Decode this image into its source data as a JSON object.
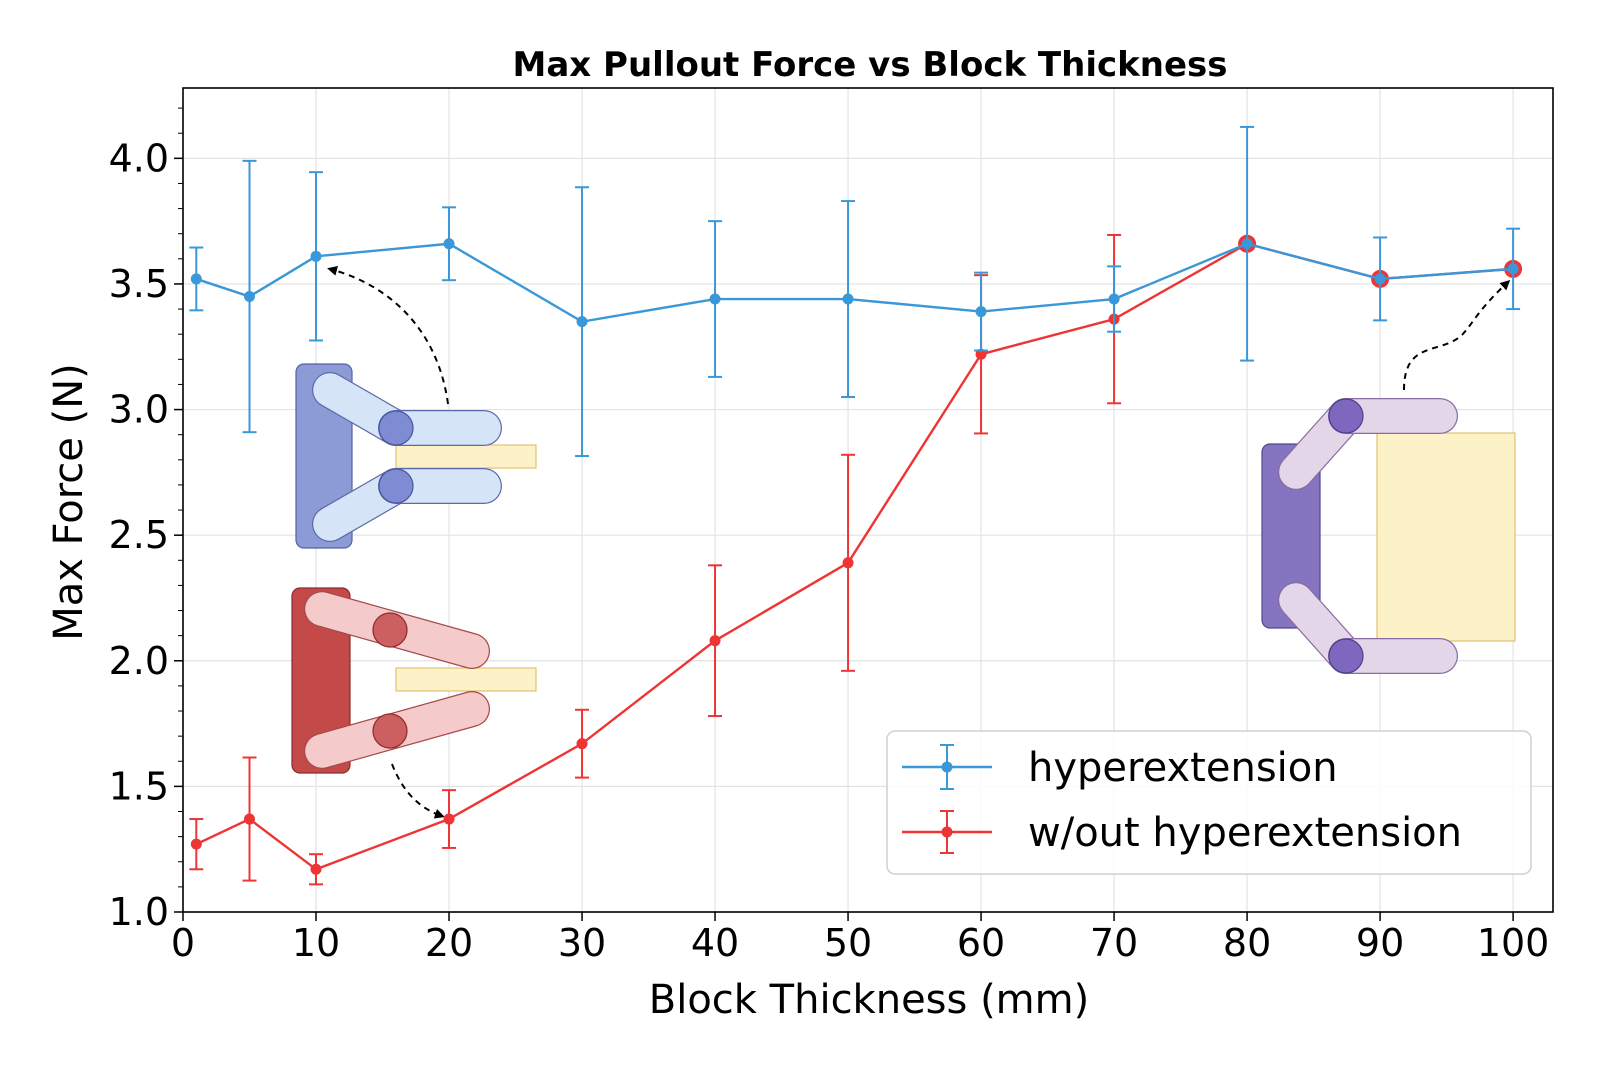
{
  "chart_data": {
    "type": "line",
    "title": "Max Pullout Force vs Block Thickness",
    "xlabel": "Block Thickness (mm)",
    "ylabel": "Max Force (N)",
    "xlim": [
      0,
      103
    ],
    "ylim": [
      1.0,
      4.28
    ],
    "xticks": [
      0,
      10,
      20,
      30,
      40,
      50,
      60,
      70,
      80,
      90,
      100
    ],
    "yticks": [
      1.0,
      1.5,
      2.0,
      2.5,
      3.0,
      3.5,
      4.0
    ],
    "xtick_labels": [
      "0",
      "10",
      "20",
      "30",
      "40",
      "50",
      "60",
      "70",
      "80",
      "90",
      "100"
    ],
    "ytick_labels": [
      "1.0",
      "1.5",
      "2.0",
      "2.5",
      "3.0",
      "3.5",
      "4.0"
    ],
    "grid": true,
    "legend_position": "bottom-right",
    "series": [
      {
        "name": "hyperextension",
        "color": "#3a97d8",
        "x": [
          1,
          5,
          10,
          20,
          30,
          40,
          50,
          60,
          70,
          80,
          90,
          100
        ],
        "y": [
          3.52,
          3.45,
          3.61,
          3.66,
          3.35,
          3.44,
          3.44,
          3.39,
          3.44,
          3.66,
          3.52,
          3.56
        ],
        "err": [
          0.125,
          0.54,
          0.335,
          0.145,
          0.535,
          0.31,
          0.39,
          0.155,
          0.13,
          0.465,
          0.165,
          0.16
        ]
      },
      {
        "name": "w/out hyperextension",
        "color": "#ee3535",
        "x": [
          1,
          5,
          10,
          20,
          30,
          40,
          50,
          60,
          70,
          80,
          90,
          100
        ],
        "y": [
          1.27,
          1.37,
          1.17,
          1.37,
          1.67,
          2.08,
          2.39,
          3.22,
          3.36,
          3.66,
          3.52,
          3.56
        ],
        "err": [
          0.1,
          0.245,
          0.06,
          0.115,
          0.135,
          0.3,
          0.43,
          0.315,
          0.335,
          0.0,
          0.0,
          0.0
        ]
      }
    ]
  },
  "insets": {
    "colors": {
      "blue_palm": "#8c9ad6",
      "blue_link": "#d6e4f7",
      "blue_joint": "#7f8bd3",
      "red_palm": "#c44a4a",
      "red_link": "#f5caca",
      "red_joint": "#cc6060",
      "purple_palm": "#8574bf",
      "purple_link": "#e2d6e8",
      "purple_joint": "#7e68bf",
      "block": "#fdf1c8",
      "block_edge": "#e2c26e"
    }
  }
}
